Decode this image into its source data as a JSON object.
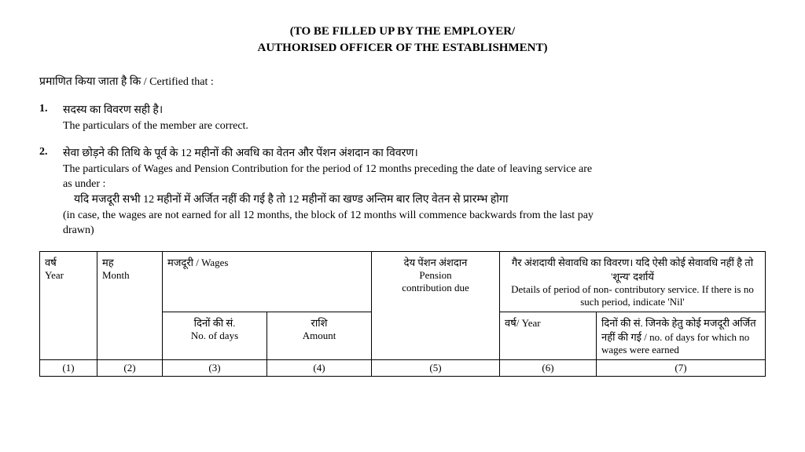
{
  "header": {
    "line1": "(TO BE FILLED UP BY THE EMPLOYER/",
    "line2": "AUTHORISED OFFICER OF THE ESTABLISHMENT)"
  },
  "certifiedLine": "प्रमाणित किया जाता है कि / Certified that :",
  "item1": {
    "num": "1.",
    "hindi": "सदस्य का विवरण सही है।",
    "english": "The particulars of the member are correct."
  },
  "item2": {
    "num": "2.",
    "hindi1": "सेवा छोड़ने की तिथि के पूर्व के 12 महीनों की अवधि का वेतन और पेंशन अंशदान का विवरण।",
    "english1a": "The particulars of Wages and Pension Contribution for the period of 12 months preceding the date of leaving service are",
    "english1b": "as  under :",
    "hindi2": "यदि मजदूरी सभी 12 महीनों में अर्जित नहीं की गई है तो 12 महीनों का खण्ड अन्तिम बार लिए वेतन से प्रारम्भ होगा",
    "english2a": "(in case, the wages are not earned for all 12 months, the block of 12 months will commence backwards from the last pay",
    "english2b": "drawn)"
  },
  "table": {
    "r1c1": "वर्ष\nYear",
    "r1c2": "मह\nMonth",
    "r1c3": "मजदूरी /  Wages",
    "r1c4": "देय पेंशन अंशदान\nPension\ncontribution due",
    "r1c5": "गैर अंशदायी सेवावधि का विवरण। यदि ऐसी कोई सेवावधि नहीं है तो 'शून्य' दर्शायें\nDetails of period of non- contributory service. If there is no such period, indicate 'Nil'",
    "r2c3a": "दिनों की सं.\nNo. of days",
    "r2c3b": "राशि\nAmount",
    "r2c5a": "वर्ष/ Year",
    "r2c5b": "दिनों की सं. जिनके हेतु कोई मजदूरी अर्जित नहीं की गई /  no. of days for which no wages were earned",
    "nums": [
      "(1)",
      "(2)",
      "(3)",
      "(4)",
      "(5)",
      "(6)",
      "(7)"
    ]
  }
}
